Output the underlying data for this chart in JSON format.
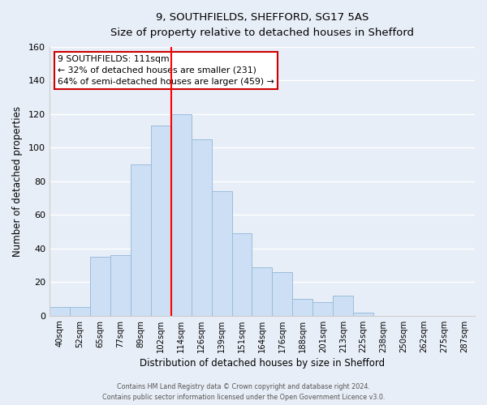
{
  "title": "9, SOUTHFIELDS, SHEFFORD, SG17 5AS",
  "subtitle": "Size of property relative to detached houses in Shefford",
  "xlabel": "Distribution of detached houses by size in Shefford",
  "ylabel": "Number of detached properties",
  "bins": [
    "40sqm",
    "52sqm",
    "65sqm",
    "77sqm",
    "89sqm",
    "102sqm",
    "114sqm",
    "126sqm",
    "139sqm",
    "151sqm",
    "164sqm",
    "176sqm",
    "188sqm",
    "201sqm",
    "213sqm",
    "225sqm",
    "238sqm",
    "250sqm",
    "262sqm",
    "275sqm",
    "287sqm"
  ],
  "values": [
    5,
    5,
    35,
    36,
    90,
    113,
    120,
    105,
    74,
    49,
    29,
    26,
    10,
    8,
    12,
    2,
    0,
    0,
    0,
    0,
    0
  ],
  "bar_color": "#ccdff5",
  "bar_edge_color": "#9bbdda",
  "vline_x_index": 6,
  "vline_color": "red",
  "annotation_title": "9 SOUTHFIELDS: 111sqm",
  "annotation_line1": "← 32% of detached houses are smaller (231)",
  "annotation_line2": "64% of semi-detached houses are larger (459) →",
  "annotation_box_color": "white",
  "annotation_box_edge": "#cc0000",
  "ylim": [
    0,
    160
  ],
  "yticks": [
    0,
    20,
    40,
    60,
    80,
    100,
    120,
    140,
    160
  ],
  "footer1": "Contains HM Land Registry data © Crown copyright and database right 2024.",
  "footer2": "Contains public sector information licensed under the Open Government Licence v3.0.",
  "background_color": "#e8eef7",
  "grid_color": "#ffffff"
}
